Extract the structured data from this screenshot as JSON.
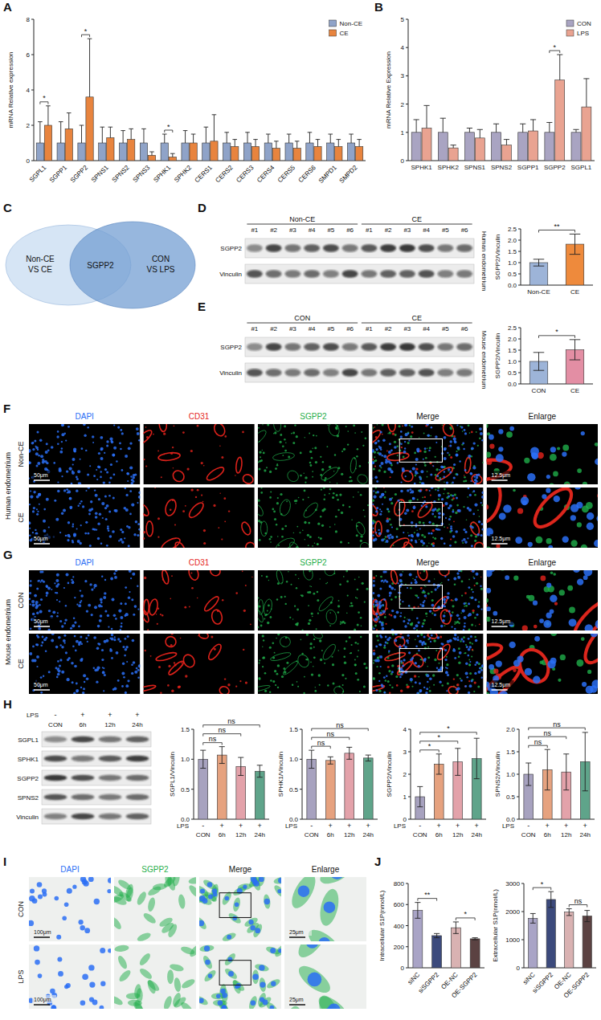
{
  "chart_data": [
    {
      "panel": "A",
      "type": "bar",
      "y_label": "mRNA Relative expression",
      "categories": [
        "SGPL1",
        "SGPP1",
        "SGPP2",
        "SPNS1",
        "SPNS2",
        "SPNS3",
        "SPHK1",
        "SPHK2",
        "CERS1",
        "CERS2",
        "CERS3",
        "CERS4",
        "CERS5",
        "CERS6",
        "SMPD1",
        "SMPD2"
      ],
      "series": [
        {
          "name": "Non-CE",
          "color": "#8fa3c8",
          "values": [
            1,
            1,
            1,
            1,
            1,
            1,
            1,
            1,
            1,
            1,
            1,
            1,
            1,
            1,
            1,
            1
          ],
          "errors": [
            1.2,
            1.2,
            1.0,
            0.9,
            0.7,
            0.8,
            0.5,
            0.7,
            0.9,
            0.6,
            0.6,
            0.5,
            0.5,
            0.6,
            0.5,
            0.5
          ]
        },
        {
          "name": "CE",
          "color": "#e8843e",
          "values": [
            2.0,
            1.8,
            3.6,
            1.3,
            1.2,
            0.3,
            0.2,
            1.0,
            1.1,
            0.8,
            0.8,
            0.7,
            0.7,
            0.8,
            0.8,
            0.8
          ],
          "errors": [
            1.1,
            0.9,
            3.3,
            0.6,
            0.6,
            0.2,
            0.2,
            0.5,
            1.5,
            0.4,
            0.4,
            0.4,
            0.4,
            0.4,
            0.4,
            0.4
          ]
        }
      ],
      "ylim": [
        0,
        8
      ],
      "yticks": [
        0,
        2,
        4,
        6,
        8
      ],
      "legend": "top-right",
      "comparisons": [
        {
          "groups": [
            "SGPL1"
          ],
          "label": "*"
        },
        {
          "groups": [
            "SGPP2"
          ],
          "label": "*"
        },
        {
          "groups": [
            "SPHK1"
          ],
          "label": "*"
        }
      ]
    },
    {
      "panel": "B",
      "type": "bar",
      "y_label": "mRNA Relative Expression",
      "categories": [
        "SPHK1",
        "SPHK2",
        "SPNS1",
        "SPNS2",
        "SGPP1",
        "SGPP2",
        "SGPL1"
      ],
      "series": [
        {
          "name": "CON",
          "color": "#a9a4c2",
          "values": [
            1,
            1,
            1,
            1,
            1,
            1,
            1
          ],
          "errors": [
            0.45,
            0.5,
            0.15,
            0.3,
            0.3,
            0.35,
            0.1
          ]
        },
        {
          "name": "LPS",
          "color": "#e9a391",
          "values": [
            1.15,
            0.45,
            0.8,
            0.55,
            1.05,
            2.85,
            1.9
          ],
          "errors": [
            0.8,
            0.1,
            0.3,
            0.2,
            0.4,
            0.9,
            1.0
          ]
        }
      ],
      "ylim": [
        0,
        5
      ],
      "yticks": [
        0,
        1,
        2,
        3,
        4,
        5
      ],
      "legend": "top-right",
      "comparisons": [
        {
          "groups": [
            "SGPP2"
          ],
          "label": "*"
        }
      ]
    },
    {
      "type": "bar",
      "y_label": "SGPP2/Vinculin",
      "categories": [
        "Non-CE",
        "CE"
      ],
      "values": [
        1.0,
        1.82
      ],
      "errors": [
        0.15,
        0.45
      ],
      "colors": [
        "#9db4d8",
        "#ee8a3c"
      ],
      "ylim": [
        0,
        2.5
      ],
      "yticks": [
        {
          "value": 0,
          "label": "0.0"
        },
        0.5,
        {
          "value": 1,
          "label": "1.0"
        },
        1.5,
        {
          "value": 2,
          "label": "2.0"
        },
        2.5
      ],
      "comparisons": [
        {
          "groups": [
            "Non-CE",
            "CE"
          ],
          "label": "**"
        }
      ]
    },
    {
      "type": "bar",
      "y_label": "SGPP2/Vinculin",
      "categories": [
        "CON",
        "CE"
      ],
      "values": [
        1.0,
        1.52
      ],
      "errors": [
        0.4,
        0.45
      ],
      "colors": [
        "#9db4d8",
        "#e38ea4"
      ],
      "ylim": [
        0,
        2.5
      ],
      "yticks": [
        {
          "value": 0,
          "label": "0.0"
        },
        0.5,
        {
          "value": 1,
          "label": "1.0"
        },
        1.5,
        {
          "value": 2,
          "label": "2.0"
        },
        2.5
      ],
      "comparisons": [
        {
          "groups": [
            "CON",
            "CE"
          ],
          "label": "*"
        }
      ]
    },
    {
      "type": "bar",
      "y_label": "SGPL1/Vinculin",
      "condition_label": "LPS",
      "condition": [
        "-",
        "+",
        "+",
        "+"
      ],
      "categories": [
        "CON",
        "6h",
        "12h",
        "24h"
      ],
      "values": [
        1.0,
        1.07,
        0.88,
        0.8
      ],
      "errors": [
        0.15,
        0.14,
        0.15,
        0.1
      ],
      "colors": [
        "#a7a2bf",
        "#e6a27f",
        "#e3a2aa",
        "#5fa48a"
      ],
      "ylim": [
        0,
        1.5
      ],
      "yticks": [
        {
          "value": 0,
          "label": "0.0"
        },
        0.5,
        {
          "value": 1,
          "label": "1.0"
        },
        1.5
      ],
      "comparisons": [
        {
          "groups": [
            "CON",
            "6h"
          ],
          "label": "ns"
        },
        {
          "groups": [
            "CON",
            "12h"
          ],
          "label": "ns"
        },
        {
          "groups": [
            "CON",
            "24h"
          ],
          "label": "ns"
        }
      ]
    },
    {
      "type": "bar",
      "y_label": "SPHK1/Vinculin",
      "condition_label": "LPS",
      "condition": [
        "-",
        "+",
        "+",
        "+"
      ],
      "categories": [
        "CON",
        "6h",
        "12h",
        "24h"
      ],
      "values": [
        1.0,
        0.98,
        1.1,
        1.02
      ],
      "errors": [
        0.15,
        0.06,
        0.1,
        0.05
      ],
      "colors": [
        "#a7a2bf",
        "#e6a27f",
        "#e3a2aa",
        "#5fa48a"
      ],
      "ylim": [
        0,
        1.5
      ],
      "yticks": [
        {
          "value": 0,
          "label": "0.0"
        },
        0.5,
        {
          "value": 1,
          "label": "1.0"
        },
        1.5
      ],
      "comparisons": [
        {
          "groups": [
            "CON",
            "6h"
          ],
          "label": "ns"
        },
        {
          "groups": [
            "CON",
            "12h"
          ],
          "label": "ns"
        },
        {
          "groups": [
            "CON",
            "24h"
          ],
          "label": "ns"
        }
      ]
    },
    {
      "type": "bar",
      "y_label": "SGPP2/Vinculin",
      "condition_label": "LPS",
      "condition": [
        "-",
        "+",
        "+",
        "+"
      ],
      "categories": [
        "CON",
        "6h",
        "12h",
        "24h"
      ],
      "values": [
        1.0,
        2.45,
        2.55,
        2.7
      ],
      "errors": [
        0.45,
        0.45,
        0.6,
        0.9
      ],
      "colors": [
        "#a7a2bf",
        "#e6a27f",
        "#e3a2aa",
        "#5fa48a"
      ],
      "ylim": [
        0,
        4
      ],
      "yticks": [
        0,
        1,
        2,
        3,
        4
      ],
      "comparisons": [
        {
          "groups": [
            "CON",
            "6h"
          ],
          "label": "*"
        },
        {
          "groups": [
            "CON",
            "12h"
          ],
          "label": "*"
        },
        {
          "groups": [
            "CON",
            "24h"
          ],
          "label": "*"
        }
      ]
    },
    {
      "type": "bar",
      "y_label": "SPNS2/Vinculin",
      "condition_label": "LPS",
      "condition": [
        "-",
        "+",
        "+",
        "+"
      ],
      "categories": [
        "CON",
        "6h",
        "12h",
        "24h"
      ],
      "values": [
        1.0,
        1.1,
        1.05,
        1.28
      ],
      "errors": [
        0.25,
        0.45,
        0.4,
        0.65
      ],
      "colors": [
        "#a7a2bf",
        "#e6a27f",
        "#e3a2aa",
        "#5fa48a"
      ],
      "ylim": [
        0,
        2
      ],
      "yticks": [
        {
          "value": 0,
          "label": "0.0"
        },
        0.5,
        {
          "value": 1,
          "label": "1.0"
        },
        1.5,
        {
          "value": 2,
          "label": "2.0"
        }
      ],
      "comparisons": [
        {
          "groups": [
            "CON",
            "6h"
          ],
          "label": "ns"
        },
        {
          "groups": [
            "CON",
            "12h"
          ],
          "label": "ns"
        },
        {
          "groups": [
            "CON",
            "24h"
          ],
          "label": "ns"
        }
      ]
    },
    {
      "panel": "J",
      "type": "bar",
      "y_label": "Intracellular S1P(nmol/L)",
      "categories": [
        "siNC",
        "siSGPP2",
        "OE-NC",
        "OE-SGPP2"
      ],
      "values": [
        545,
        305,
        380,
        275
      ],
      "errors": [
        75,
        20,
        55,
        10
      ],
      "colors": [
        "#a9a4c6",
        "#3c4a7c",
        "#d9b2b2",
        "#5b4242"
      ],
      "ylim": [
        0,
        800
      ],
      "yticks": [
        0,
        200,
        400,
        600,
        800
      ],
      "comparisons": [
        {
          "groups": [
            "siNC",
            "siSGPP2"
          ],
          "label": "**"
        },
        {
          "groups": [
            "OE-NC",
            "OE-SGPP2"
          ],
          "label": "*"
        }
      ]
    },
    {
      "type": "bar",
      "y_label": "Extracellular S1P(nmol/L)",
      "categories": [
        "siNC",
        "siSGPP2",
        "OE-NC",
        "OE-SGPP2"
      ],
      "values": [
        1760,
        2430,
        1980,
        1840
      ],
      "errors": [
        170,
        280,
        120,
        200
      ],
      "colors": [
        "#a9a4c6",
        "#3c4a7c",
        "#d9b2b2",
        "#5b4242"
      ],
      "ylim": [
        0,
        3000
      ],
      "yticks": [
        0,
        1000,
        2000,
        3000
      ],
      "comparisons": [
        {
          "groups": [
            "siNC",
            "siSGPP2"
          ],
          "label": "*"
        },
        {
          "groups": [
            "OE-NC",
            "OE-SGPP2"
          ],
          "label": "ns"
        }
      ]
    }
  ],
  "venn": {
    "panel": "C",
    "left": [
      "Non-CE",
      "VS CE"
    ],
    "right": [
      "CON",
      "VS LPS"
    ],
    "overlap": "SGPP2"
  },
  "blots": [
    {
      "panel": "D",
      "side_label": "Human endometrium",
      "groups": [
        {
          "label": "Non-CE",
          "lanes": [
            "#1",
            "#2",
            "#3",
            "#4",
            "#5",
            "#6"
          ]
        },
        {
          "label": "CE",
          "lanes": [
            "#1",
            "#2",
            "#3",
            "#4",
            "#5",
            "#6"
          ]
        }
      ],
      "rows": [
        "SGPP2",
        "Vinculin"
      ]
    },
    {
      "panel": "E",
      "side_label": "Mouse endometrium",
      "groups": [
        {
          "label": "CON",
          "lanes": [
            "#1",
            "#2",
            "#3",
            "#4",
            "#5",
            "#6"
          ]
        },
        {
          "label": "CE",
          "lanes": [
            "#1",
            "#2",
            "#3",
            "#4",
            "#5",
            "#6"
          ]
        }
      ],
      "rows": [
        "SGPP2",
        "Vinculin"
      ]
    },
    {
      "panel": "H",
      "condition_label": "LPS",
      "condition": [
        "-",
        "+",
        "+",
        "+"
      ],
      "lanes": [
        "CON",
        "6h",
        "12h",
        "24h"
      ],
      "rows": [
        "SGPL1",
        "SPHK1",
        "SGPP2",
        "SPNS2",
        "Vinculin"
      ]
    }
  ],
  "images": [
    {
      "panel": "F",
      "side_label": "Human endometrium",
      "columns": [
        {
          "label": "DAPI",
          "color": "#2a6ef5"
        },
        {
          "label": "CD31",
          "color": "#e5231b"
        },
        {
          "label": "SGPP2",
          "color": "#1fae4a"
        },
        {
          "label": "Merge",
          "color": "#111111"
        },
        {
          "label": "Enlarge",
          "color": "#111111"
        }
      ],
      "rows": [
        "Non-CE",
        "CE"
      ],
      "scale_bars": [
        "50μm",
        "12.5μm"
      ]
    },
    {
      "panel": "G",
      "side_label": "Mouse endometrium",
      "columns": [
        {
          "label": "DAPI",
          "color": "#2a6ef5"
        },
        {
          "label": "CD31",
          "color": "#e5231b"
        },
        {
          "label": "SGPP2",
          "color": "#1fae4a"
        },
        {
          "label": "Merge",
          "color": "#111111"
        },
        {
          "label": "Enlarge",
          "color": "#111111"
        }
      ],
      "rows": [
        "CON",
        "CE"
      ],
      "scale_bars": [
        "50μm",
        "12.5μm"
      ]
    },
    {
      "panel": "I",
      "columns": [
        {
          "label": "DAPI",
          "color": "#2a6ef5"
        },
        {
          "label": "SGPP2",
          "color": "#1fae4a"
        },
        {
          "label": "Merge",
          "color": "#111111"
        },
        {
          "label": "Enlarge",
          "color": "#111111"
        }
      ],
      "rows": [
        "CON",
        "LPS"
      ],
      "scale_bars": [
        "100μm",
        "25μm"
      ]
    }
  ]
}
